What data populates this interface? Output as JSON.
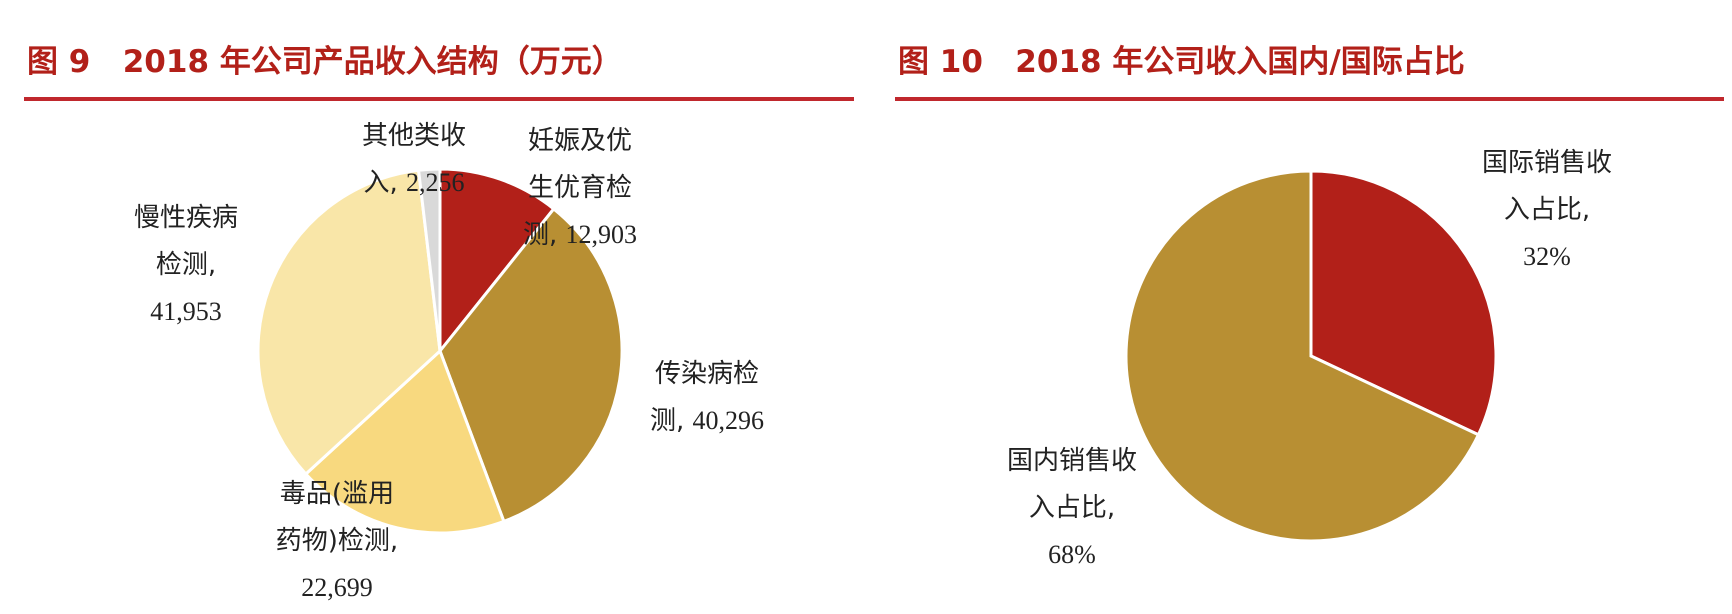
{
  "chart_data": [
    {
      "type": "pie",
      "title": "图 9   2018 年公司产品收入结构（万元）",
      "categories": [
        "妊娠及优生优育检测,",
        "传染病检测,",
        "毒品(滥用药物)检测,",
        "慢性疾病检测,",
        "其他类收入,"
      ],
      "values": [
        12903,
        40296,
        22699,
        41953,
        2256
      ],
      "value_labels": [
        "12,903",
        "40,296",
        "22,699",
        "41,953",
        "2,256"
      ],
      "colors": [
        "#b22019",
        "#b88f33",
        "#f8d97f",
        "#f9e6a8",
        "#d9d9d9"
      ]
    },
    {
      "type": "pie",
      "title": "图 10   2018 年公司收入国内/国际占比",
      "categories": [
        "国际销售收入占比,",
        "国内销售收入占比,"
      ],
      "values": [
        32,
        68
      ],
      "value_labels": [
        "32%",
        "68%"
      ],
      "colors": [
        "#b22019",
        "#b88f33"
      ]
    }
  ]
}
